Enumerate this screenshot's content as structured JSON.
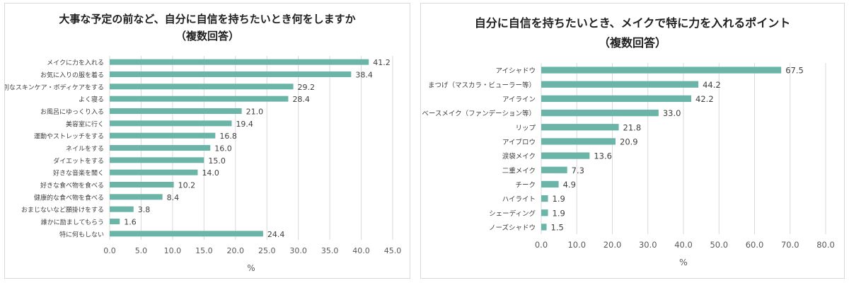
{
  "chart_data": [
    {
      "type": "bar",
      "orientation": "horizontal",
      "title": "大事な予定の前など、自分に自信を持ちたいとき何をしますか",
      "subtitle": "（複数回答）",
      "xlabel": "%",
      "xlim": [
        0,
        45
      ],
      "x_ticks": [
        "0.0",
        "5.0",
        "10.0",
        "15.0",
        "20.0",
        "25.0",
        "30.0",
        "35.0",
        "40.0",
        "45.0"
      ],
      "grid": true,
      "bar_color": "#6bb5a8",
      "categories": [
        "メイクに力を入れる",
        "お気に入りの服を着る",
        "特別なスキンケア・ボディケアをする",
        "よく寝る",
        "お風呂にゆっくり入る",
        "美容室に行く",
        "運動やストレッチをする",
        "ネイルをする",
        "ダイエットをする",
        "好きな音楽を聞く",
        "好きな食べ物を食べる",
        "健康的な食べ物を食べる",
        "おまじないなど願掛けをする",
        "誰かに励ましてもらう",
        "特に何もしない"
      ],
      "values": [
        41.2,
        38.4,
        29.2,
        28.4,
        21.0,
        19.4,
        16.8,
        16.0,
        15.0,
        14.0,
        10.2,
        8.4,
        3.8,
        1.6,
        24.4
      ],
      "value_labels": [
        "41.2",
        "38.4",
        "29.2",
        "28.4",
        "21.0",
        "19.4",
        "16.8",
        "16.0",
        "15.0",
        "14.0",
        "10.2",
        "8.4",
        "3.8",
        "1.6",
        "24.4"
      ]
    },
    {
      "type": "bar",
      "orientation": "horizontal",
      "title": "自分に自信を持ちたいとき、メイクで特に力を入れるポイント",
      "subtitle": "（複数回答）",
      "xlabel": "%",
      "xlim": [
        0,
        80
      ],
      "x_ticks": [
        "0.0",
        "10.0",
        "20.0",
        "30.0",
        "40.0",
        "50.0",
        "60.0",
        "70.0",
        "80.0"
      ],
      "grid": true,
      "bar_color": "#6bb5a8",
      "categories": [
        "アイシャドウ",
        "まつげ（マスカラ・ビューラー等）",
        "アイライン",
        "ベースメイク（ファンデーション等）",
        "リップ",
        "アイブロウ",
        "涙袋メイク",
        "二重メイク",
        "チーク",
        "ハイライト",
        "シェーディング",
        "ノーズシャドウ"
      ],
      "values": [
        67.5,
        44.2,
        42.2,
        33.0,
        21.8,
        20.9,
        13.6,
        7.3,
        4.9,
        1.9,
        1.9,
        1.5
      ],
      "value_labels": [
        "67.5",
        "44.2",
        "42.2",
        "33.0",
        "21.8",
        "20.9",
        "13.6",
        "7.3",
        "4.9",
        "1.9",
        "1.9",
        "1.5"
      ]
    }
  ]
}
